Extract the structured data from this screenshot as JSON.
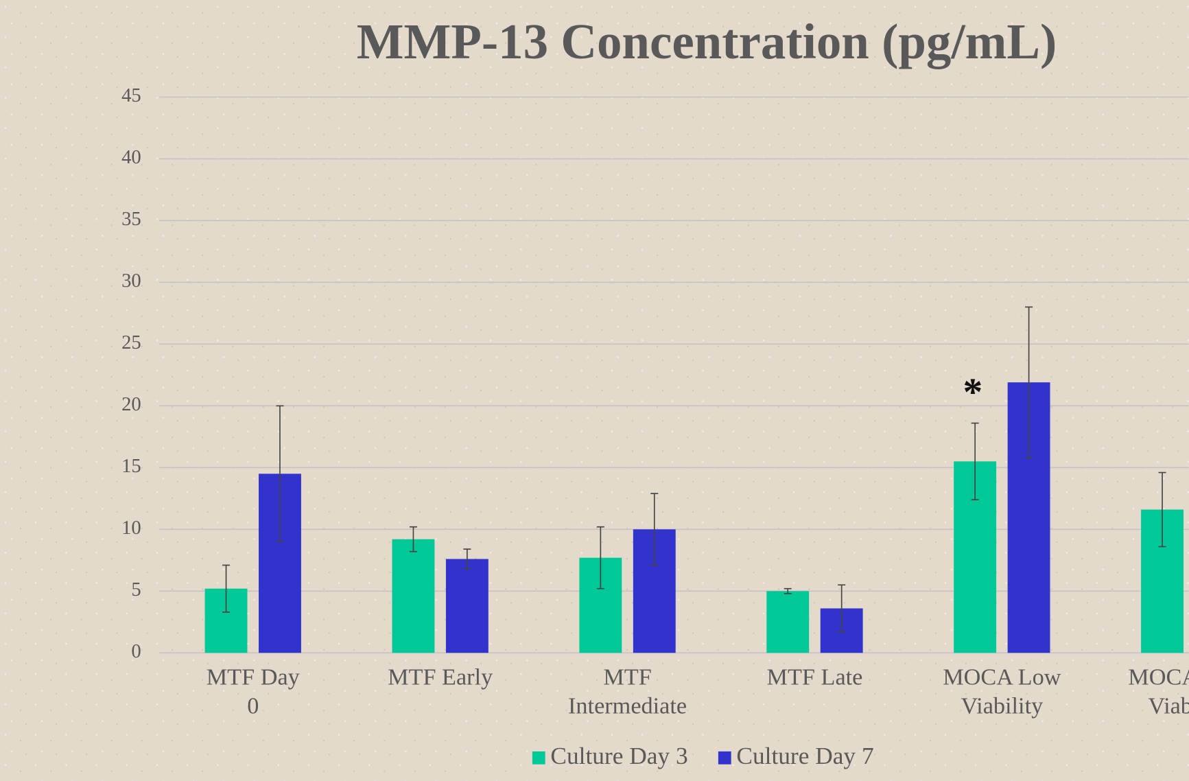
{
  "chart_data": {
    "type": "bar",
    "title": "MMP-13 Concentration (pg/mL)",
    "annotation": "*",
    "categories": [
      "MTF Day 0",
      "MTF Early",
      "MTF Intermediate",
      "MTF Late",
      "MOCA Low Viability",
      "MOCA High Viability"
    ],
    "series": [
      {
        "name": "Culture Day 3",
        "color": "#00c896",
        "values": [
          5.2,
          9.2,
          7.7,
          5.0,
          15.5,
          11.6
        ],
        "errors": [
          1.9,
          1.0,
          2.5,
          0.2,
          3.1,
          3.0
        ]
      },
      {
        "name": "Culture Day 7",
        "color": "#3232cc",
        "values": [
          14.5,
          7.6,
          10.0,
          3.6,
          21.9,
          null
        ],
        "errors": [
          5.5,
          0.8,
          2.9,
          1.9,
          6.1,
          null
        ]
      }
    ],
    "ylim": [
      0,
      45
    ],
    "yticks": [
      0,
      5,
      10,
      15,
      20,
      25,
      30,
      35,
      40,
      45
    ],
    "grid": true,
    "legend": "bottom"
  }
}
